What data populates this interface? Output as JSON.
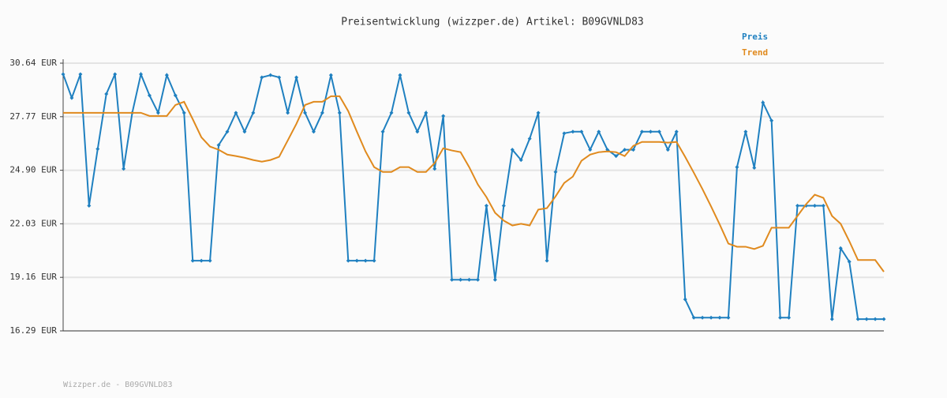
{
  "chart_data": {
    "type": "line",
    "title": "Preisentwicklung (wizzper.de) Artikel: B09GVNLD83",
    "footer": "Wizzper.de - B09GVNLD83",
    "ylim": [
      16.29,
      30.64
    ],
    "yticks": [
      {
        "value": 16.29,
        "label": "16.29 EUR"
      },
      {
        "value": 19.16,
        "label": "19.16 EUR"
      },
      {
        "value": 22.03,
        "label": "22.03 EUR"
      },
      {
        "value": 24.9,
        "label": "24.90 EUR"
      },
      {
        "value": 27.77,
        "label": "27.77 EUR"
      },
      {
        "value": 30.64,
        "label": "30.64 EUR"
      }
    ],
    "grid": true,
    "legend": "top-right",
    "series": [
      {
        "name": "Preis",
        "color": "#1f80c0",
        "markers": true,
        "values": [
          30.05,
          28.78,
          30.05,
          23.0,
          26.04,
          28.99,
          30.05,
          24.98,
          27.98,
          30.05,
          28.91,
          27.98,
          30.0,
          28.91,
          27.98,
          20.05,
          20.05,
          20.05,
          26.25,
          26.97,
          27.98,
          26.97,
          27.98,
          29.88,
          30.0,
          29.88,
          27.98,
          29.88,
          27.98,
          26.97,
          27.98,
          30.0,
          27.98,
          20.05,
          20.05,
          20.05,
          20.05,
          26.97,
          27.98,
          30.0,
          27.98,
          26.97,
          27.98,
          24.98,
          27.81,
          19.03,
          19.03,
          19.03,
          19.03,
          23.0,
          19.03,
          23.0,
          26.0,
          25.45,
          26.59,
          27.98,
          20.05,
          24.81,
          26.88,
          26.97,
          26.97,
          26.0,
          26.97,
          26.0,
          25.66,
          26.0,
          26.0,
          26.97,
          26.97,
          26.97,
          26.0,
          26.97,
          17.98,
          17.0,
          17.0,
          17.0,
          17.0,
          17.0,
          25.07,
          26.97,
          25.03,
          28.53,
          27.56,
          17.0,
          17.0,
          23.0,
          23.0,
          23.0,
          23.0,
          16.92,
          20.72,
          20.0,
          16.92,
          16.92,
          16.92,
          16.92
        ]
      },
      {
        "name": "Trend",
        "color": "#e08a1e",
        "markers": false,
        "values": [
          27.98,
          27.98,
          27.98,
          27.98,
          27.98,
          27.98,
          27.98,
          27.98,
          27.98,
          27.98,
          27.81,
          27.81,
          27.81,
          28.4,
          28.57,
          27.64,
          26.67,
          26.17,
          26.0,
          25.74,
          25.66,
          25.57,
          25.45,
          25.36,
          25.45,
          25.62,
          26.5,
          27.39,
          28.4,
          28.57,
          28.57,
          28.87,
          28.87,
          28.07,
          26.97,
          25.91,
          25.07,
          24.81,
          24.81,
          25.07,
          25.07,
          24.81,
          24.81,
          25.28,
          26.08,
          25.96,
          25.87,
          25.07,
          24.14,
          23.46,
          22.62,
          22.2,
          21.94,
          22.03,
          21.94,
          22.79,
          22.87,
          23.5,
          24.22,
          24.56,
          25.41,
          25.74,
          25.87,
          25.91,
          25.87,
          25.66,
          26.21,
          26.42,
          26.42,
          26.42,
          26.38,
          26.42,
          25.62,
          24.77,
          23.89,
          22.96,
          21.99,
          20.97,
          20.8,
          20.8,
          20.68,
          20.85,
          21.82,
          21.82,
          21.82,
          22.45,
          23.08,
          23.59,
          23.42,
          22.45,
          22.03,
          21.1,
          20.09,
          20.09,
          20.09,
          19.46
        ]
      }
    ]
  }
}
